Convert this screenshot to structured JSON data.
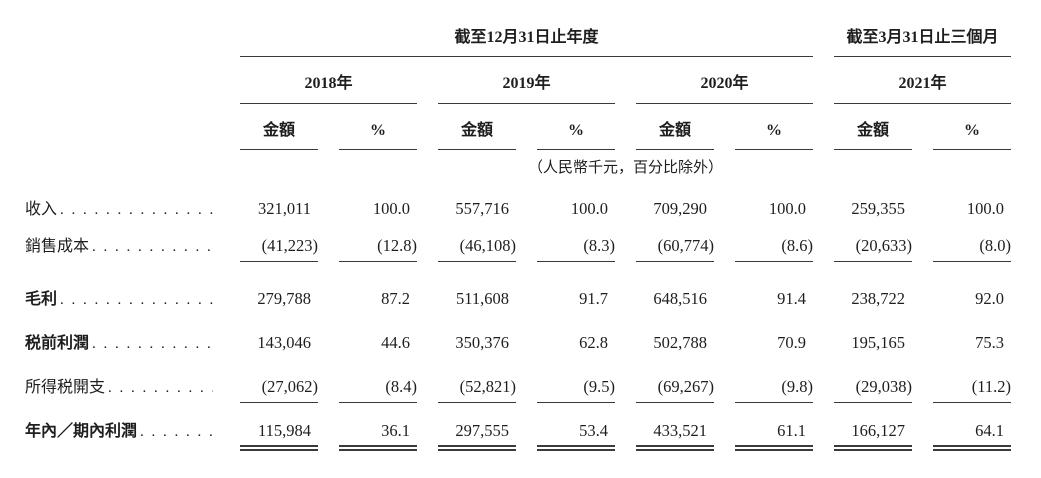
{
  "page": {
    "background": "#ffffff",
    "text_color": "#1e1e1e",
    "rule_color": "#3a3a3a"
  },
  "table": {
    "spanners": [
      {
        "label": "截至12月31日止年度"
      },
      {
        "label": "截至3月31日止三個月"
      }
    ],
    "years": [
      "2018年",
      "2019年",
      "2020年",
      "2021年"
    ],
    "col_headers": {
      "amount": "金額",
      "percent": "%"
    },
    "units_note": "（人民幣千元，百分比除外）",
    "rows": [
      {
        "label": "收入",
        "bold": false,
        "underline": "none",
        "values": [
          "321,011",
          "100.0",
          "557,716",
          "100.0",
          "709,290",
          "100.0",
          "259,355",
          "100.0"
        ]
      },
      {
        "label": "銷售成本",
        "bold": false,
        "underline": "single",
        "values": [
          "(41,223)",
          "(12.8)",
          "(46,108)",
          "(8.3)",
          "(60,774)",
          "(8.6)",
          "(20,633)",
          "(8.0)"
        ]
      },
      {
        "label": "毛利",
        "bold": true,
        "underline": "none",
        "values": [
          "279,788",
          "87.2",
          "511,608",
          "91.7",
          "648,516",
          "91.4",
          "238,722",
          "92.0"
        ]
      },
      {
        "label": "税前利潤",
        "bold": true,
        "underline": "none",
        "values": [
          "143,046",
          "44.6",
          "350,376",
          "62.8",
          "502,788",
          "70.9",
          "195,165",
          "75.3"
        ]
      },
      {
        "label": "所得税開支",
        "bold": false,
        "underline": "single",
        "values": [
          "(27,062)",
          "(8.4)",
          "(52,821)",
          "(9.5)",
          "(69,267)",
          "(9.8)",
          "(29,038)",
          "(11.2)"
        ]
      },
      {
        "label": "年內／期內利潤",
        "bold": true,
        "underline": "double",
        "values": [
          "115,984",
          "36.1",
          "297,555",
          "53.4",
          "433,521",
          "61.1",
          "166,127",
          "64.1"
        ]
      }
    ]
  }
}
